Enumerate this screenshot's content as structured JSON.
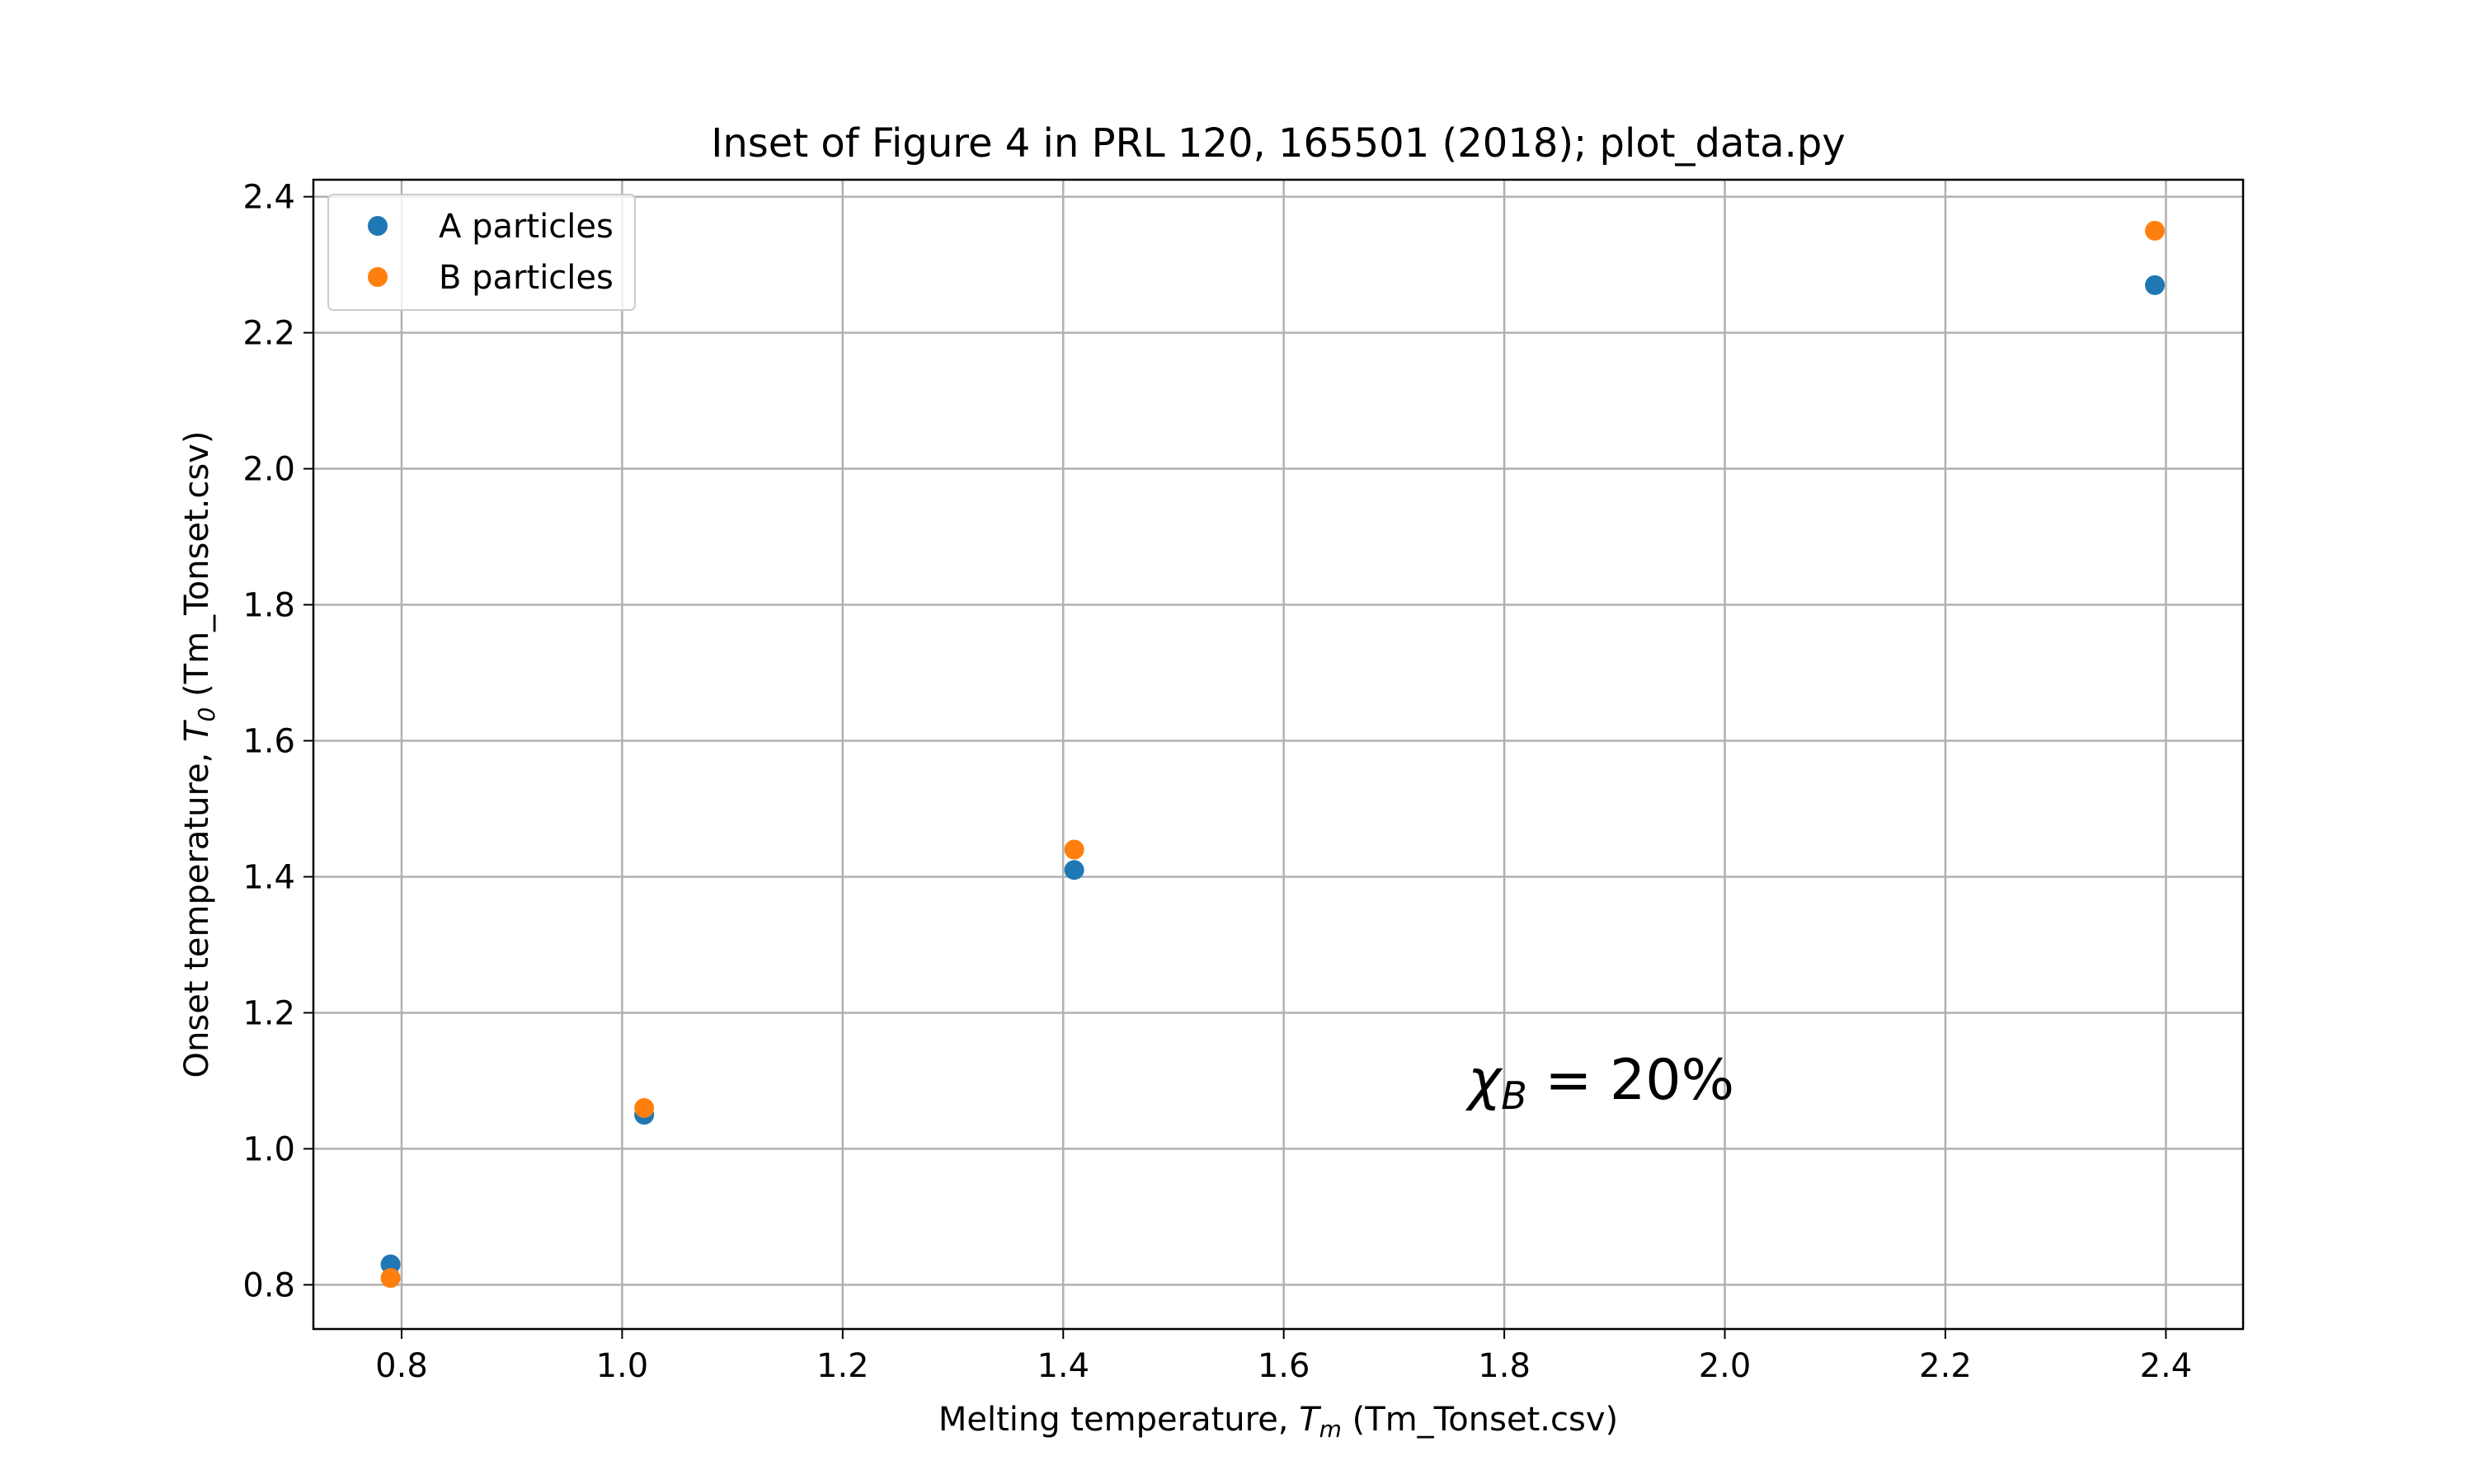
{
  "chart_data": {
    "type": "scatter",
    "title": "Inset of Figure 4 in PRL 120, 165501 (2018); plot_data.py",
    "xlabel": {
      "prefix": "Melting temperature, ",
      "symbol": "T",
      "sub": "m",
      "suffix": " (Tm_Tonset.csv)"
    },
    "ylabel": {
      "prefix": "Onset temperature, ",
      "symbol": "T",
      "sub": "0",
      "suffix": " (Tm_Tonset.csv)"
    },
    "xlim": [
      0.72,
      2.47
    ],
    "ylim": [
      0.735,
      2.425
    ],
    "xticks": [
      0.8,
      1.0,
      1.2,
      1.4,
      1.6,
      1.8,
      2.0,
      2.2,
      2.4
    ],
    "yticks": [
      0.8,
      1.0,
      1.2,
      1.4,
      1.6,
      1.8,
      2.0,
      2.2,
      2.4
    ],
    "grid": true,
    "legend_position": "top-left",
    "series": [
      {
        "name": "A particles",
        "color": "#1f77b4",
        "x": [
          0.79,
          1.02,
          1.41,
          2.39
        ],
        "y": [
          0.83,
          1.05,
          1.41,
          2.27
        ]
      },
      {
        "name": "B particles",
        "color": "#ff7f0e",
        "x": [
          0.79,
          1.02,
          1.41,
          2.39
        ],
        "y": [
          0.81,
          1.06,
          1.44,
          2.35
        ]
      }
    ],
    "annotation": {
      "symbol": "χ",
      "sub": "B",
      "rest": " = 20%"
    }
  }
}
